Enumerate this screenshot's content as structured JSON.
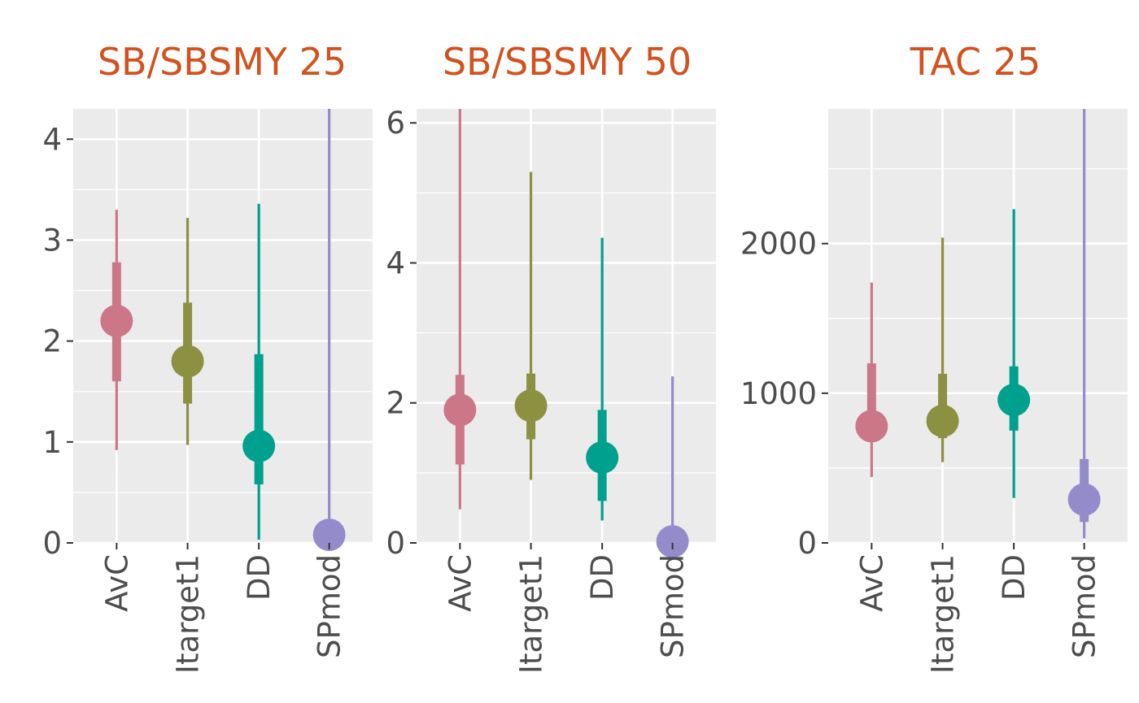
{
  "chart_data": [
    {
      "type": "pointrange",
      "title": "SB/SBSMY 25",
      "categories": [
        "AvC",
        "Itarget1",
        "DD",
        "SPmod"
      ],
      "ylim": [
        0,
        4.3
      ],
      "yticks": [
        0,
        1,
        2,
        3,
        4
      ],
      "ytick_labels": [
        "0",
        "1",
        "2",
        "3",
        "4"
      ],
      "points": [
        {
          "category": "AvC",
          "median": 2.2,
          "inner": [
            1.6,
            2.78
          ],
          "outer": [
            0.92,
            3.3
          ]
        },
        {
          "category": "Itarget1",
          "median": 1.8,
          "inner": [
            1.38,
            2.38
          ],
          "outer": [
            0.97,
            3.22
          ]
        },
        {
          "category": "DD",
          "median": 0.96,
          "inner": [
            0.58,
            1.87
          ],
          "outer": [
            0.03,
            3.36
          ]
        },
        {
          "category": "SPmod",
          "median": 0.08,
          "inner": [
            null,
            null
          ],
          "outer": [
            0.0,
            4.3
          ]
        }
      ],
      "grid": true
    },
    {
      "type": "pointrange",
      "title": "SB/SBSMY 50",
      "categories": [
        "AvC",
        "Itarget1",
        "DD",
        "SPmod"
      ],
      "ylim": [
        0,
        6.2
      ],
      "yticks": [
        0,
        2,
        4,
        6
      ],
      "ytick_labels": [
        "0",
        "2",
        "4",
        "6"
      ],
      "points": [
        {
          "category": "AvC",
          "median": 1.9,
          "inner": [
            1.12,
            2.4
          ],
          "outer": [
            0.48,
            6.2
          ]
        },
        {
          "category": "Itarget1",
          "median": 1.96,
          "inner": [
            1.48,
            2.42
          ],
          "outer": [
            0.9,
            5.3
          ]
        },
        {
          "category": "DD",
          "median": 1.22,
          "inner": [
            0.6,
            1.9
          ],
          "outer": [
            0.32,
            4.36
          ]
        },
        {
          "category": "SPmod",
          "median": 0.02,
          "inner": [
            null,
            null
          ],
          "outer": [
            0.0,
            2.38
          ]
        }
      ],
      "grid": true
    },
    {
      "type": "pointrange",
      "title": "TAC 25",
      "categories": [
        "AvC",
        "Itarget1",
        "DD",
        "SPmod"
      ],
      "ylim": [
        0,
        2900
      ],
      "yticks": [
        0,
        1000,
        2000
      ],
      "ytick_labels": [
        "0",
        "1000",
        "2000"
      ],
      "points": [
        {
          "category": "AvC",
          "median": 780,
          "inner": [
            680,
            1200
          ],
          "outer": [
            440,
            1740
          ]
        },
        {
          "category": "Itarget1",
          "median": 815,
          "inner": [
            700,
            1130
          ],
          "outer": [
            540,
            2040
          ]
        },
        {
          "category": "DD",
          "median": 955,
          "inner": [
            750,
            1180
          ],
          "outer": [
            300,
            2230
          ]
        },
        {
          "category": "SPmod",
          "median": 290,
          "inner": [
            140,
            560
          ],
          "outer": [
            30,
            2900
          ]
        }
      ],
      "grid": true
    }
  ],
  "colors": {
    "AvC": "#CC7788",
    "Itarget1": "#8C9142",
    "DD": "#00A08E",
    "SPmod": "#948BCB",
    "title": "#D2521F",
    "panel_bg": "#EBEBEB",
    "grid": "#FFFFFF",
    "text": "#4D4D4D"
  }
}
